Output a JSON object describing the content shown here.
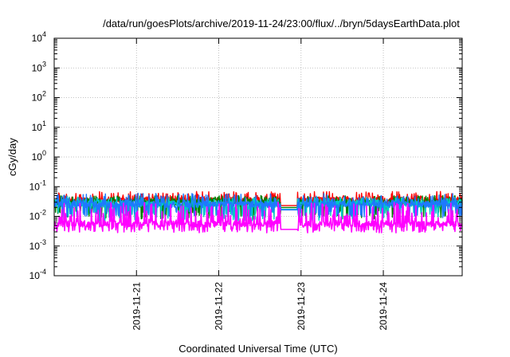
{
  "chart_data": {
    "type": "line",
    "title": "/data/run/goesPlots/archive/2019-11-24/23:00/flux/../bryn/5daysEarthData.plot",
    "xlabel": "Coordinated Universal Time (UTC)",
    "ylabel": "cGy/day",
    "yscale": "log",
    "ylim": [
      0.0001,
      10000
    ],
    "y_ticks": [
      {
        "value": 0.0001,
        "base": "10",
        "exp": "-4"
      },
      {
        "value": 0.001,
        "base": "10",
        "exp": "-3"
      },
      {
        "value": 0.01,
        "base": "10",
        "exp": "-2"
      },
      {
        "value": 0.1,
        "base": "10",
        "exp": "-1"
      },
      {
        "value": 1,
        "base": "10",
        "exp": "0"
      },
      {
        "value": 10,
        "base": "10",
        "exp": "1"
      },
      {
        "value": 100,
        "base": "10",
        "exp": "2"
      },
      {
        "value": 1000,
        "base": "10",
        "exp": "3"
      },
      {
        "value": 10000,
        "base": "10",
        "exp": "4"
      }
    ],
    "xlim": [
      "2019-11-20T00:00",
      "2019-11-24T23:00"
    ],
    "x_ticks": [
      "2019-11-21",
      "2019-11-22",
      "2019-11-23",
      "2019-11-24"
    ],
    "grid": true,
    "data_gap": [
      "2019-11-22T18:00",
      "2019-11-22T23:00"
    ],
    "series": [
      {
        "color": "#ff0000",
        "baseline": 0.035,
        "spike_max": 0.07,
        "dip_min": 0.022
      },
      {
        "color": "#008000",
        "baseline": 0.03,
        "spike_max": 0.05,
        "dip_min": 0.008
      },
      {
        "color": "#00c8c8",
        "baseline": 0.026,
        "spike_max": 0.045,
        "dip_min": 0.007
      },
      {
        "color": "#1e78ff",
        "baseline": 0.025,
        "spike_max": 0.06,
        "dip_min": 0.009
      },
      {
        "color": "#ff00ff",
        "baseline": 0.0055,
        "spike_max": 0.03,
        "dip_min": 0.0028
      }
    ]
  }
}
